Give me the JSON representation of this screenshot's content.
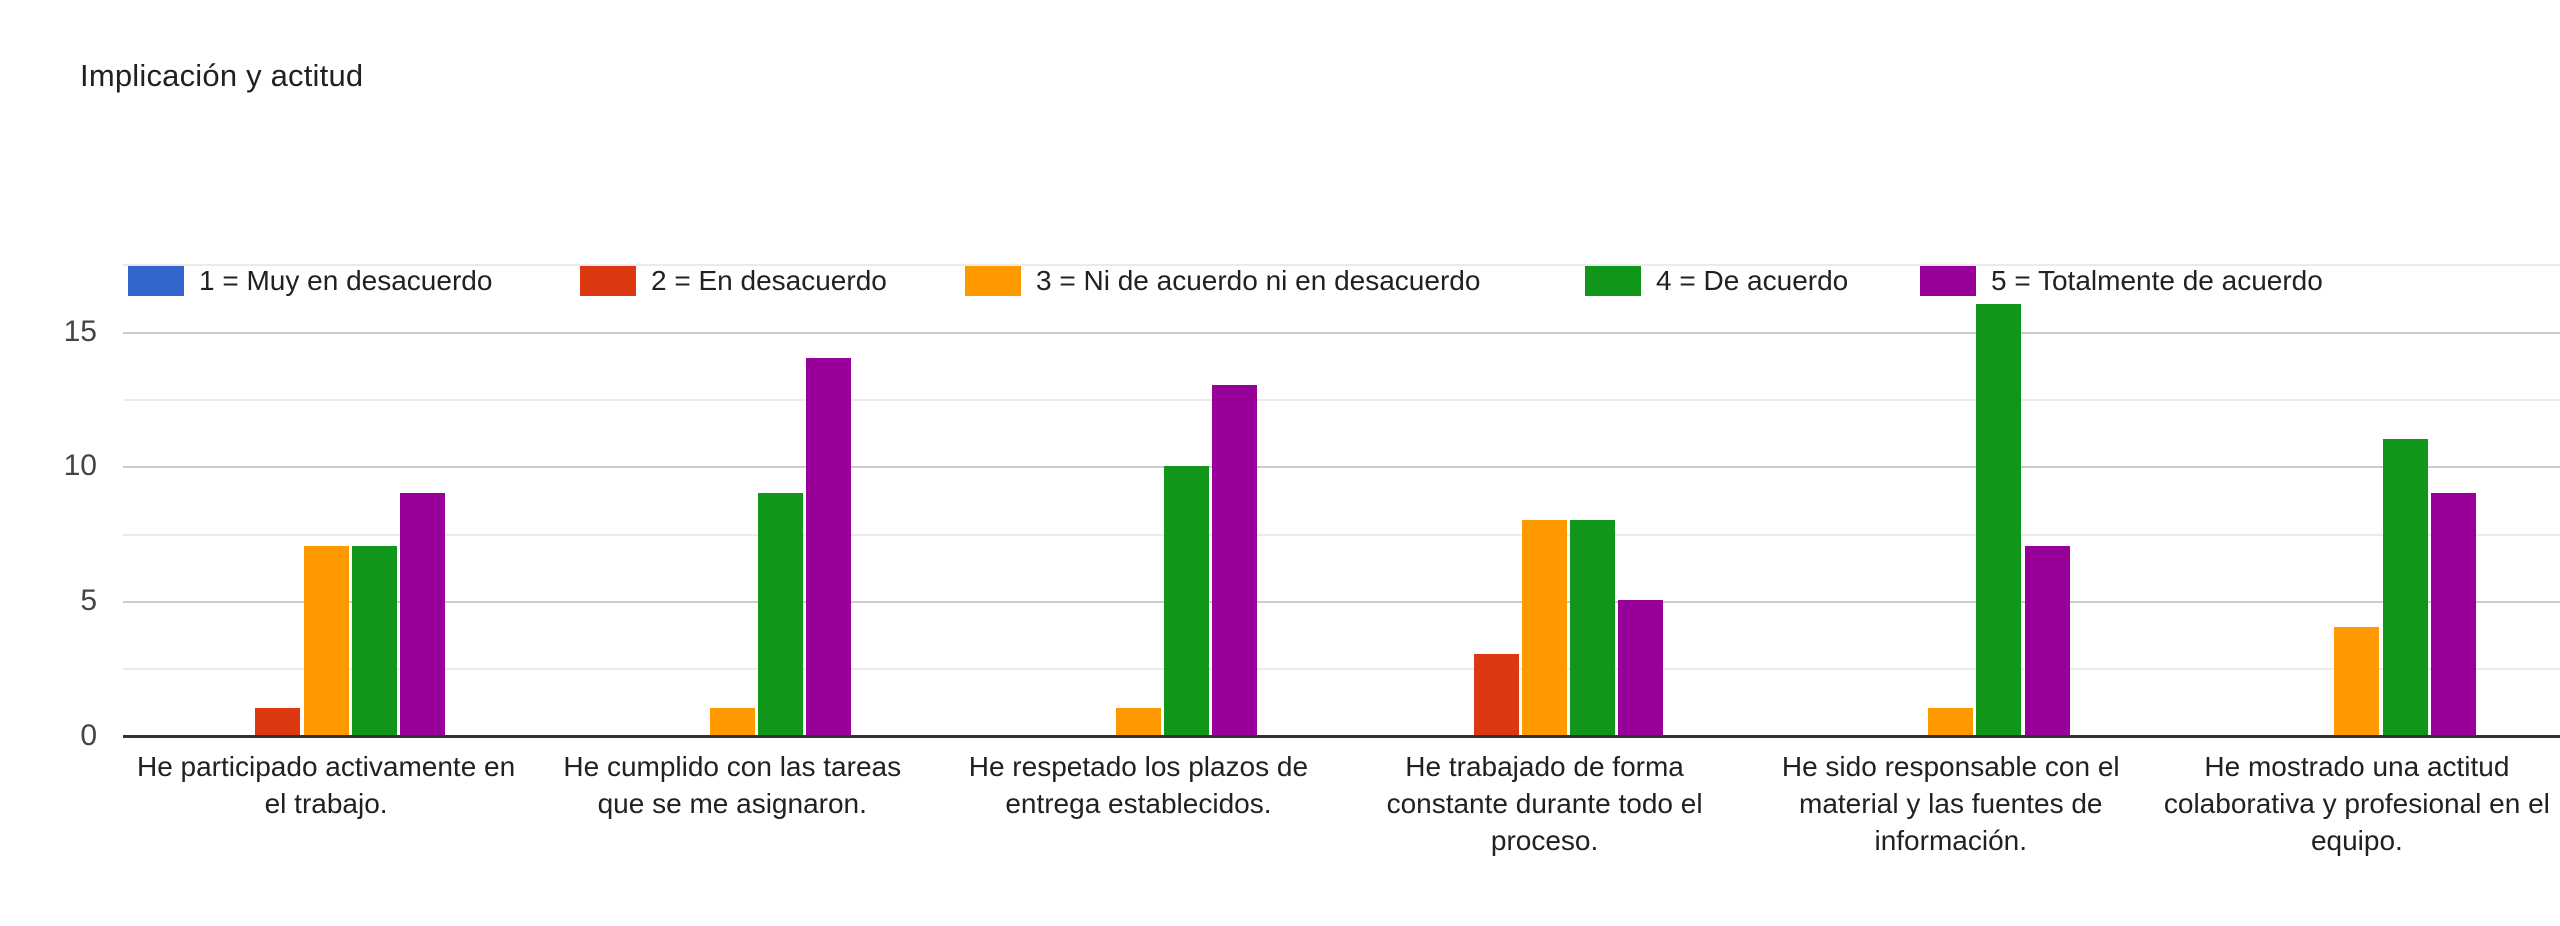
{
  "chart_data": {
    "type": "bar",
    "title": "Implicación y actitud",
    "legend_position": "top",
    "grid": true,
    "categories": [
      "He participado activamente en el trabajo.",
      "He cumplido con las tareas que se me asignaron.",
      "He respetado los plazos de entrega establecidos.",
      "He trabajado de forma constante durante todo el proceso.",
      "He sido responsable con el material y las fuentes de información.",
      "He mostrado una actitud colaborativa y profesional en el equipo."
    ],
    "series": [
      {
        "name": "1 = Muy en desacuerdo",
        "color": "#3366CC",
        "values": [
          0,
          0,
          0,
          0,
          0,
          0
        ]
      },
      {
        "name": "2 = En desacuerdo",
        "color": "#DC3912",
        "values": [
          1,
          0,
          0,
          3,
          0,
          0
        ]
      },
      {
        "name": "3 = Ni de acuerdo ni en desacuerdo",
        "color": "#FF9900",
        "values": [
          7,
          1,
          1,
          8,
          1,
          4
        ]
      },
      {
        "name": "4 = De acuerdo",
        "color": "#109618",
        "values": [
          7,
          9,
          10,
          8,
          16,
          11
        ]
      },
      {
        "name": "5 = Totalmente de acuerdo",
        "color": "#990099",
        "values": [
          9,
          14,
          13,
          5,
          7,
          9
        ]
      }
    ],
    "y_axis": {
      "tick_labels": [
        "0",
        "5",
        "10",
        "15"
      ],
      "ticks": [
        0,
        5,
        10,
        15
      ],
      "max": 17.5,
      "minor_gridline_interval": 2.5,
      "major_gridline_interval": 5
    }
  }
}
